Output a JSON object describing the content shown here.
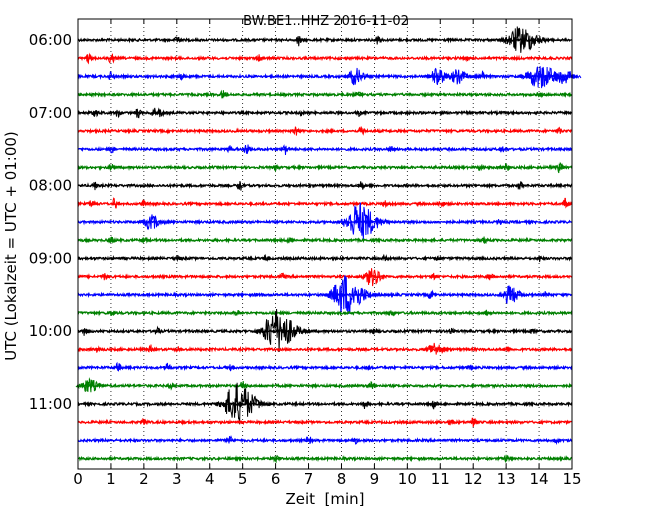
{
  "chart_data": {
    "type": "line",
    "title": "BW.BE1..HHZ 2016-11-02",
    "xlabel": "Zeit  [min]",
    "ylabel": "UTC (Lokalzeit = UTC + 01:00)",
    "xlim": [
      0,
      15
    ],
    "x_ticks": [
      "0",
      "1",
      "2",
      "3",
      "4",
      "5",
      "6",
      "7",
      "8",
      "9",
      "10",
      "11",
      "12",
      "13",
      "14",
      "15"
    ],
    "y_tick_labels": [
      "06:00",
      "07:00",
      "08:00",
      "09:00",
      "10:00",
      "11:00"
    ],
    "rows_per_hour": 4,
    "grid": "vertical dotted",
    "series_colors": [
      "#000000",
      "#ff0000",
      "#0000ff",
      "#008000"
    ],
    "traces": [
      {
        "start": "06:00",
        "events": [
          {
            "t": 6.7,
            "amp": 6
          },
          {
            "t": 13.4,
            "amp": 13
          },
          {
            "t": 9.1,
            "amp": 4
          },
          {
            "t": 3.0,
            "amp": 3
          }
        ]
      },
      {
        "start": "06:15",
        "events": [
          {
            "t": 0.3,
            "amp": 5
          },
          {
            "t": 1.0,
            "amp": 6
          },
          {
            "t": 5.5,
            "amp": 3
          },
          {
            "t": 11.8,
            "amp": 3
          }
        ]
      },
      {
        "start": "06:30",
        "events": [
          {
            "t": 1.0,
            "amp": 5
          },
          {
            "t": 3.1,
            "amp": 4
          },
          {
            "t": 8.4,
            "amp": 8
          },
          {
            "t": 10.9,
            "amp": 8
          },
          {
            "t": 11.5,
            "amp": 7
          },
          {
            "t": 12.3,
            "amp": 5
          },
          {
            "t": 14.0,
            "amp": 12
          },
          {
            "t": 14.7,
            "amp": 9
          }
        ]
      },
      {
        "start": "06:45",
        "events": [
          {
            "t": 4.4,
            "amp": 4
          },
          {
            "t": 8.5,
            "amp": 3
          },
          {
            "t": 14.0,
            "amp": 3
          }
        ]
      },
      {
        "start": "07:00",
        "events": [
          {
            "t": 0.5,
            "amp": 4
          },
          {
            "t": 1.2,
            "amp": 4
          },
          {
            "t": 1.8,
            "amp": 5
          },
          {
            "t": 2.3,
            "amp": 5
          },
          {
            "t": 2.5,
            "amp": 5
          },
          {
            "t": 6.8,
            "amp": 3
          },
          {
            "t": 8.5,
            "amp": 3
          }
        ]
      },
      {
        "start": "07:15",
        "events": [
          {
            "t": 6.6,
            "amp": 4
          },
          {
            "t": 8.6,
            "amp": 5
          },
          {
            "t": 14.6,
            "amp": 4
          }
        ]
      },
      {
        "start": "07:30",
        "events": [
          {
            "t": 1.0,
            "amp": 3
          },
          {
            "t": 4.6,
            "amp": 3
          },
          {
            "t": 5.1,
            "amp": 6
          },
          {
            "t": 6.3,
            "amp": 5
          },
          {
            "t": 9.5,
            "amp": 3
          },
          {
            "t": 12.9,
            "amp": 3
          }
        ]
      },
      {
        "start": "07:45",
        "events": [
          {
            "t": 1.0,
            "amp": 3
          },
          {
            "t": 6.0,
            "amp": 3
          },
          {
            "t": 12.2,
            "amp": 3
          },
          {
            "t": 13.0,
            "amp": 4
          },
          {
            "t": 14.6,
            "amp": 5
          }
        ]
      },
      {
        "start": "08:00",
        "events": [
          {
            "t": 0.5,
            "amp": 4
          },
          {
            "t": 4.9,
            "amp": 5
          },
          {
            "t": 8.6,
            "amp": 5
          },
          {
            "t": 13.4,
            "amp": 4
          }
        ]
      },
      {
        "start": "08:15",
        "events": [
          {
            "t": 0.4,
            "amp": 4
          },
          {
            "t": 1.1,
            "amp": 5
          },
          {
            "t": 2.0,
            "amp": 3
          },
          {
            "t": 9.3,
            "amp": 3
          },
          {
            "t": 11.0,
            "amp": 3
          },
          {
            "t": 14.8,
            "amp": 5
          }
        ]
      },
      {
        "start": "08:30",
        "events": [
          {
            "t": 2.2,
            "amp": 7
          },
          {
            "t": 8.5,
            "amp": 19
          },
          {
            "t": 12.8,
            "amp": 3
          }
        ]
      },
      {
        "start": "08:45",
        "events": [
          {
            "t": 1.0,
            "amp": 3
          },
          {
            "t": 2.0,
            "amp": 3
          },
          {
            "t": 6.4,
            "amp": 3
          },
          {
            "t": 12.3,
            "amp": 3
          }
        ]
      },
      {
        "start": "09:00",
        "events": [
          {
            "t": 3.0,
            "amp": 4
          },
          {
            "t": 5.7,
            "amp": 3
          },
          {
            "t": 9.3,
            "amp": 3
          },
          {
            "t": 10.9,
            "amp": 3
          },
          {
            "t": 14.0,
            "amp": 3
          }
        ]
      },
      {
        "start": "09:15",
        "events": [
          {
            "t": 0.8,
            "amp": 3
          },
          {
            "t": 6.2,
            "amp": 3
          },
          {
            "t": 8.9,
            "amp": 9
          },
          {
            "t": 10.8,
            "amp": 3
          },
          {
            "t": 12.5,
            "amp": 3
          }
        ]
      },
      {
        "start": "09:30",
        "events": [
          {
            "t": 5.5,
            "amp": 3
          },
          {
            "t": 8.1,
            "amp": 21
          },
          {
            "t": 10.7,
            "amp": 4
          },
          {
            "t": 13.1,
            "amp": 9
          },
          {
            "t": 14.2,
            "amp": 3
          }
        ]
      },
      {
        "start": "09:45",
        "events": [
          {
            "t": 1.0,
            "amp": 3
          },
          {
            "t": 4.8,
            "amp": 3
          },
          {
            "t": 9.5,
            "amp": 3
          },
          {
            "t": 12.4,
            "amp": 3
          }
        ]
      },
      {
        "start": "10:00",
        "events": [
          {
            "t": 0.2,
            "amp": 4
          },
          {
            "t": 2.4,
            "amp": 4
          },
          {
            "t": 6.0,
            "amp": 22
          },
          {
            "t": 9.0,
            "amp": 3
          },
          {
            "t": 11.3,
            "amp": 3
          },
          {
            "t": 13.8,
            "amp": 3
          }
        ]
      },
      {
        "start": "10:15",
        "events": [
          {
            "t": 0.6,
            "amp": 3
          },
          {
            "t": 2.2,
            "amp": 4
          },
          {
            "t": 3.0,
            "amp": 3
          },
          {
            "t": 10.8,
            "amp": 7
          },
          {
            "t": 13.0,
            "amp": 3
          }
        ]
      },
      {
        "start": "10:30",
        "events": [
          {
            "t": 1.2,
            "amp": 4
          },
          {
            "t": 2.7,
            "amp": 5
          },
          {
            "t": 4.6,
            "amp": 3
          },
          {
            "t": 8.8,
            "amp": 3
          },
          {
            "t": 11.9,
            "amp": 3
          }
        ]
      },
      {
        "start": "10:45",
        "events": [
          {
            "t": 0.3,
            "amp": 7
          },
          {
            "t": 2.8,
            "amp": 3
          },
          {
            "t": 5.0,
            "amp": 5
          },
          {
            "t": 8.9,
            "amp": 3
          }
        ]
      },
      {
        "start": "11:00",
        "events": [
          {
            "t": 4.8,
            "amp": 21
          },
          {
            "t": 8.7,
            "amp": 4
          },
          {
            "t": 10.8,
            "amp": 4
          }
        ]
      },
      {
        "start": "11:15",
        "events": [
          {
            "t": 2.0,
            "amp": 3
          },
          {
            "t": 11.3,
            "amp": 3
          },
          {
            "t": 12.0,
            "amp": 4
          }
        ]
      },
      {
        "start": "11:30",
        "events": [
          {
            "t": 4.6,
            "amp": 5
          },
          {
            "t": 7.0,
            "amp": 5
          },
          {
            "t": 8.4,
            "amp": 3
          },
          {
            "t": 14.5,
            "amp": 3
          }
        ]
      },
      {
        "start": "11:45",
        "events": [
          {
            "t": 6.0,
            "amp": 3
          },
          {
            "t": 13.0,
            "amp": 3
          }
        ]
      }
    ]
  }
}
